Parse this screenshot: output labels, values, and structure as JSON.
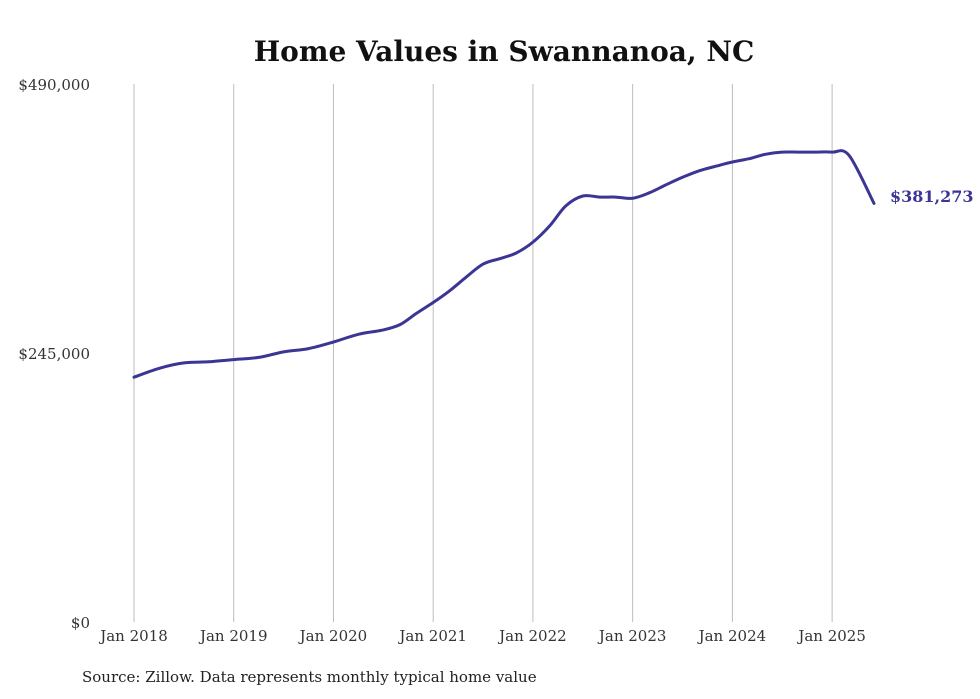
{
  "source_note": "Source: Zillow. Data represents monthly typical home value",
  "chart_data": {
    "type": "line",
    "title": "Home Values in Swannanoa, NC",
    "xlabel": "",
    "ylabel": "",
    "ylim": [
      0,
      490000
    ],
    "yticks": [
      {
        "value": 0,
        "label": "$0"
      },
      {
        "value": 245000,
        "label": "$245,000"
      },
      {
        "value": 490000,
        "label": "$490,000"
      }
    ],
    "xticks": [
      {
        "value": 2018.0,
        "label": "Jan 2018"
      },
      {
        "value": 2019.0,
        "label": "Jan 2019"
      },
      {
        "value": 2020.0,
        "label": "Jan 2020"
      },
      {
        "value": 2021.0,
        "label": "Jan 2021"
      },
      {
        "value": 2022.0,
        "label": "Jan 2022"
      },
      {
        "value": 2023.0,
        "label": "Jan 2023"
      },
      {
        "value": 2024.0,
        "label": "Jan 2024"
      },
      {
        "value": 2025.0,
        "label": "Jan 2025"
      }
    ],
    "xlim": [
      2018.0,
      2025.42
    ],
    "grid": "vertical",
    "line_color": "#3b3594",
    "end_label": "$381,273",
    "series": [
      {
        "x": [
          2018.0,
          2018.25,
          2018.5,
          2018.75,
          2019.0,
          2019.25,
          2019.5,
          2019.75,
          2020.0,
          2020.25,
          2020.5,
          2020.67,
          2020.83,
          2021.0,
          2021.17,
          2021.33,
          2021.5,
          2021.67,
          2021.83,
          2022.0,
          2022.17,
          2022.33,
          2022.5,
          2022.67,
          2022.83,
          2023.0,
          2023.17,
          2023.33,
          2023.5,
          2023.67,
          2023.83,
          2024.0,
          2024.17,
          2024.33,
          2024.5,
          2024.67,
          2024.83,
          2025.0,
          2025.17,
          2025.42
        ],
        "y": [
          223000,
          231000,
          236000,
          237000,
          239000,
          241000,
          246000,
          249000,
          255000,
          262000,
          266000,
          271000,
          281000,
          291000,
          302000,
          314000,
          326000,
          331000,
          336000,
          346000,
          361000,
          379000,
          388000,
          387000,
          387000,
          386000,
          391000,
          398000,
          405000,
          411000,
          415000,
          419000,
          422000,
          426000,
          428000,
          428000,
          428000,
          428000,
          425000,
          381273
        ]
      }
    ]
  }
}
